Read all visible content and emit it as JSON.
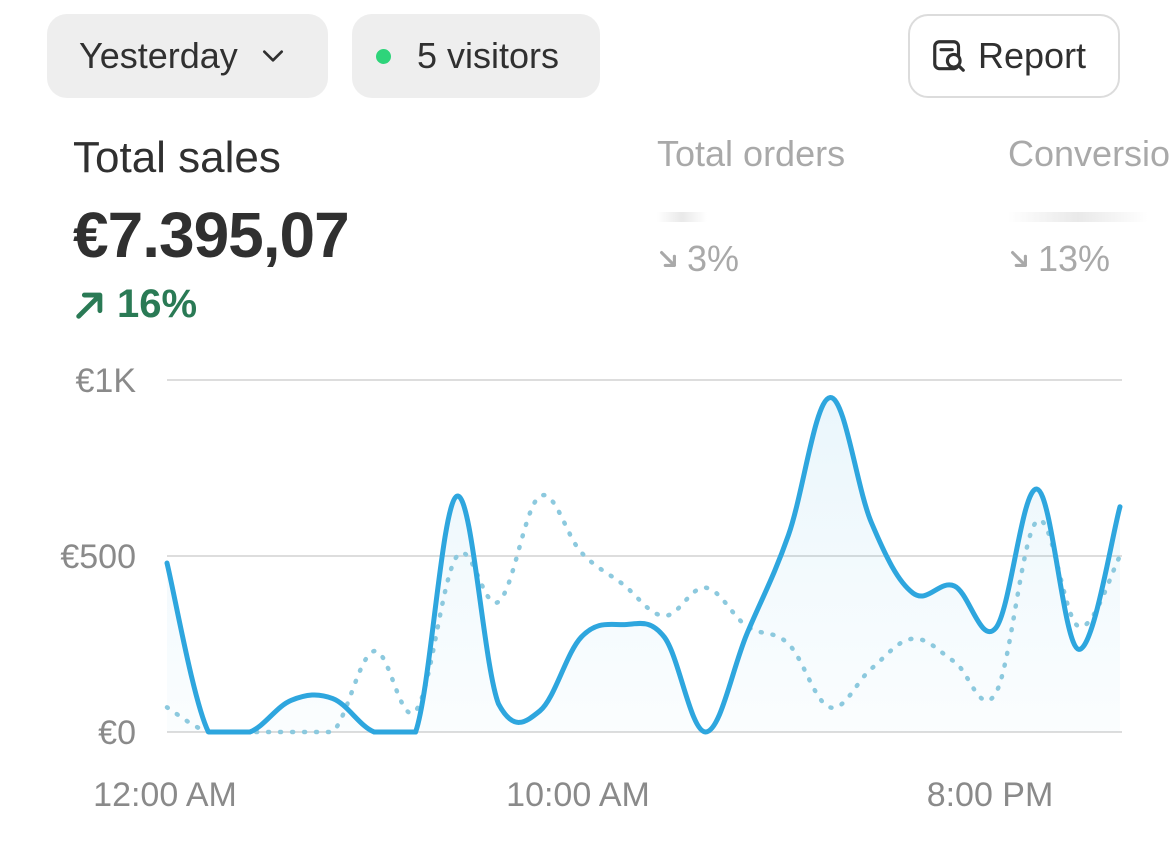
{
  "toolbar": {
    "range_label": "Yesterday",
    "visitors_label": "5 visitors",
    "visitors_dot_color": "#2ed47a",
    "report_label": "Report"
  },
  "metrics": {
    "sales": {
      "title": "Total sales",
      "value": "€7.395,07",
      "change": "16%",
      "trend": "up",
      "color": "#2a7a55"
    },
    "orders": {
      "title": "Total orders",
      "change": "3%",
      "trend": "down"
    },
    "conversion": {
      "title": "Conversio",
      "change": "13%",
      "trend": "down"
    }
  },
  "chart_data": {
    "type": "line",
    "x_tick_labels": [
      "12:00 AM",
      "10:00 AM",
      "8:00 PM"
    ],
    "y_tick_labels": [
      "€1K",
      "€500",
      "€0"
    ],
    "ylim": [
      0,
      1000
    ],
    "grid": true,
    "x_hours": [
      0,
      1,
      2,
      3,
      4,
      5,
      6,
      7,
      8,
      9,
      10,
      11,
      12,
      13,
      14,
      15,
      16,
      17,
      18,
      19,
      20,
      21,
      22,
      23
    ],
    "series": [
      {
        "style": "solid",
        "color": "#2ea6de",
        "values": [
          480,
          0,
          0,
          90,
          95,
          0,
          0,
          670,
          80,
          60,
          270,
          305,
          270,
          0,
          280,
          560,
          950,
          595,
          395,
          415,
          295,
          690,
          235,
          640
        ]
      },
      {
        "style": "dotted",
        "color": "#8cc9de",
        "values": [
          70,
          0,
          0,
          0,
          0,
          230,
          60,
          500,
          370,
          670,
          510,
          420,
          330,
          410,
          300,
          250,
          70,
          180,
          265,
          200,
          110,
          600,
          300,
          500
        ]
      }
    ]
  }
}
